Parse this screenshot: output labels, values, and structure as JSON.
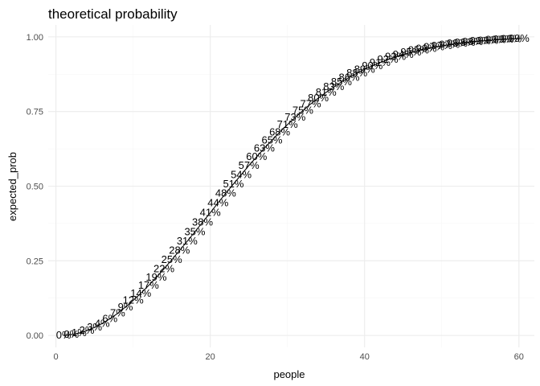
{
  "chart_data": {
    "type": "line",
    "title": "theoretical probability",
    "xlabel": "people",
    "ylabel": "expected_prob",
    "xlim": [
      -1,
      62
    ],
    "ylim": [
      -0.04,
      1.04
    ],
    "x_ticks": [
      0,
      20,
      40,
      60
    ],
    "x_tick_labels": [
      "0",
      "20",
      "40",
      "60"
    ],
    "y_ticks": [
      0,
      0.25,
      0.5,
      0.75,
      1
    ],
    "y_tick_labels": [
      "0.00",
      "0.25",
      "0.50",
      "0.75",
      "1.00"
    ],
    "grid": true,
    "series": [
      {
        "x": [
          1,
          2,
          3,
          4,
          5,
          6,
          7,
          8,
          9,
          10,
          11,
          12,
          13,
          14,
          15,
          16,
          17,
          18,
          19,
          20,
          21,
          22,
          23,
          24,
          25,
          26,
          27,
          28,
          29,
          30,
          31,
          32,
          33,
          34,
          35,
          36,
          37,
          38,
          39,
          40,
          41,
          42,
          43,
          44,
          45,
          46,
          47,
          48,
          49,
          50,
          51,
          52,
          53,
          54,
          55,
          56,
          57,
          58,
          59,
          60
        ],
        "values": [
          0,
          0.003,
          0.008,
          0.016,
          0.027,
          0.04,
          0.056,
          0.074,
          0.095,
          0.117,
          0.141,
          0.167,
          0.194,
          0.223,
          0.253,
          0.284,
          0.315,
          0.347,
          0.379,
          0.411,
          0.444,
          0.476,
          0.507,
          0.538,
          0.569,
          0.598,
          0.627,
          0.654,
          0.681,
          0.706,
          0.73,
          0.753,
          0.775,
          0.795,
          0.814,
          0.832,
          0.849,
          0.864,
          0.878,
          0.891,
          0.903,
          0.914,
          0.924,
          0.933,
          0.941,
          0.948,
          0.955,
          0.961,
          0.966,
          0.97,
          0.974,
          0.978,
          0.981,
          0.984,
          0.986,
          0.988,
          0.99,
          0.992,
          0.993,
          0.994
        ],
        "labels": [
          "0%",
          "0%",
          "1%",
          "2%",
          "3%",
          "4%",
          "6%",
          "7%",
          "9%",
          "12%",
          "14%",
          "17%",
          "19%",
          "22%",
          "25%",
          "28%",
          "31%",
          "35%",
          "38%",
          "41%",
          "44%",
          "48%",
          "51%",
          "54%",
          "57%",
          "60%",
          "63%",
          "65%",
          "68%",
          "71%",
          "73%",
          "75%",
          "77%",
          "80%",
          "81%",
          "83%",
          "85%",
          "86%",
          "88%",
          "89%",
          "90%",
          "91%",
          "92%",
          "93%",
          "94%",
          "95%",
          "95%",
          "96%",
          "97%",
          "97%",
          "97%",
          "98%",
          "98%",
          "98%",
          "99%",
          "99%",
          "99%",
          "99%",
          "99%",
          "99%"
        ]
      }
    ]
  }
}
